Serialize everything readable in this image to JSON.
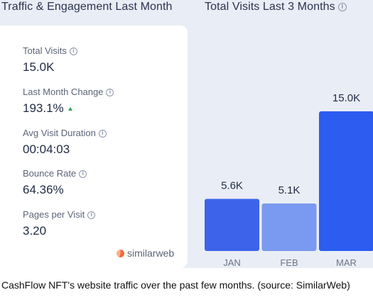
{
  "left_section": {
    "title": "Traffic & Engagement Last Month",
    "stats": [
      {
        "label": "Total Visits",
        "value": "15.0K"
      },
      {
        "label": "Last Month Change",
        "value": "193.1%",
        "trend": "up"
      },
      {
        "label": "Avg Visit Duration",
        "value": "00:04:03"
      },
      {
        "label": "Bounce Rate",
        "value": "64.36%"
      },
      {
        "label": "Pages per Visit",
        "value": "3.20"
      }
    ],
    "brand": "similarweb"
  },
  "right_section": {
    "title": "Total Visits Last 3 Months"
  },
  "chart_data": {
    "type": "bar",
    "title": "Total Visits Last 3 Months",
    "categories": [
      "JAN",
      "FEB",
      "MAR"
    ],
    "values": [
      5.6,
      5.1,
      15.0
    ],
    "value_labels": [
      "5.6K",
      "5.1K",
      "15.0K"
    ],
    "unit": "K",
    "ylim": [
      0,
      15.0
    ],
    "grid": false,
    "colors": [
      "#3d63ea",
      "#7a99f0",
      "#2c5cf0"
    ]
  },
  "caption": "CashFlow NFT's website traffic over the past few months. (source: SimilarWeb)",
  "colors": {
    "panel_background": "#e9edf5",
    "card_background": "#ffffff",
    "trend_up": "#2ea44f"
  }
}
